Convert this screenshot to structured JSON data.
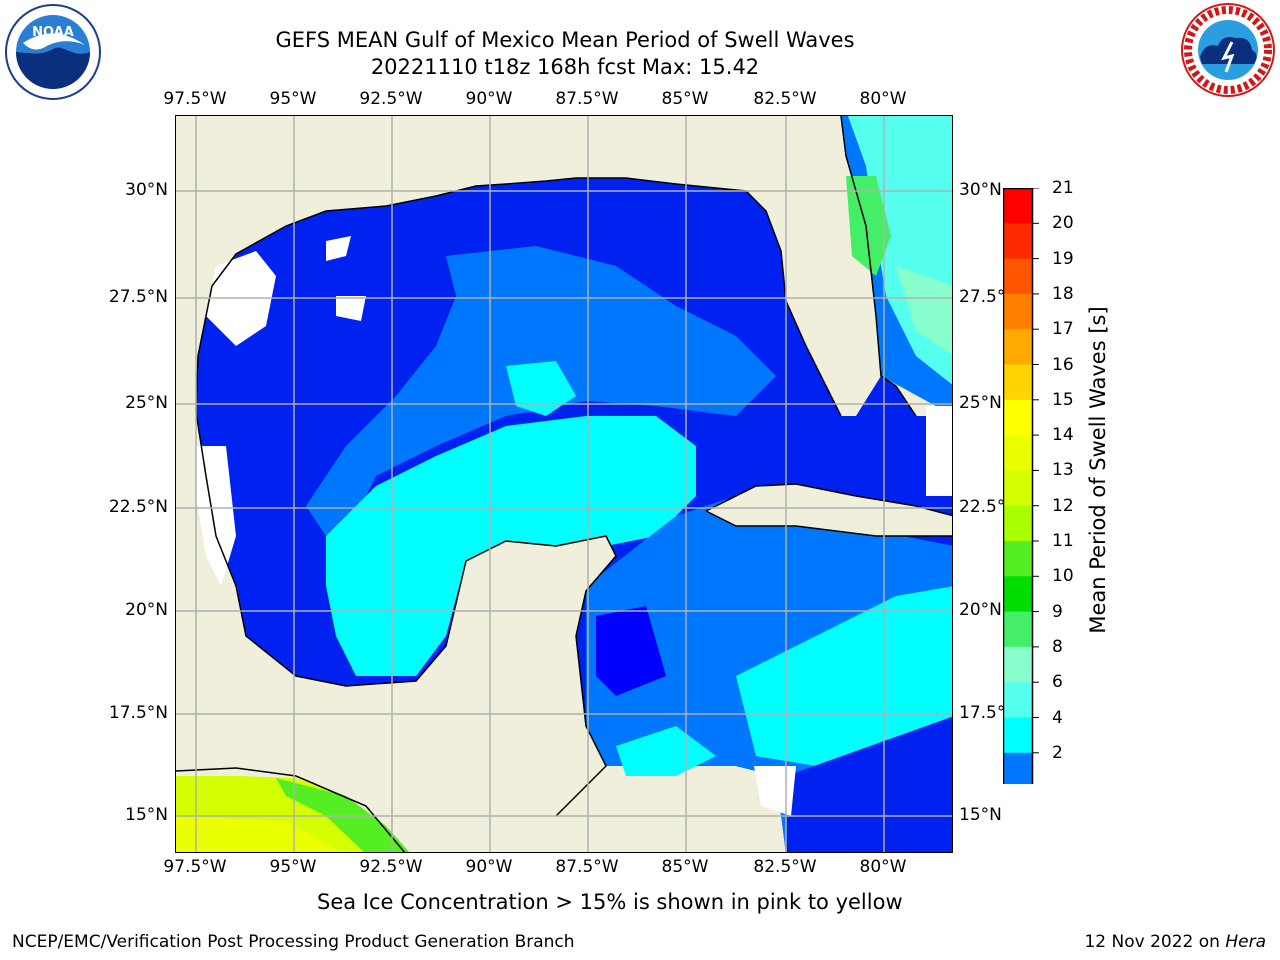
{
  "title_line1": "GEFS MEAN Gulf of Mexico Mean Period of Swell Waves",
  "title_line2": "20221110 t18z 168h fcst   Max: 15.42",
  "longitude_labels": [
    "97.5°W",
    "95°W",
    "92.5°W",
    "90°W",
    "87.5°W",
    "85°W",
    "82.5°W",
    "80°W"
  ],
  "latitude_labels": [
    "30°N",
    "27.5°N",
    "25°N",
    "22.5°N",
    "20°N",
    "17.5°N",
    "15°N"
  ],
  "colorbar": {
    "title": "Mean Period of Swell Waves [s]",
    "ticks": [
      "21",
      "20",
      "19",
      "18",
      "17",
      "16",
      "15",
      "14",
      "13",
      "12",
      "11",
      "10",
      "9",
      "8",
      "6",
      "4",
      "2"
    ],
    "colors": [
      "#ff0000",
      "#ff2a00",
      "#ff5500",
      "#ff8000",
      "#ffaa00",
      "#ffd400",
      "#ffff00",
      "#eaff00",
      "#d4ff00",
      "#aaff00",
      "#55ee22",
      "#00dd00",
      "#44ee66",
      "#88ffcc",
      "#55ffee",
      "#00ffff",
      "#0077ff",
      "#0000ff"
    ]
  },
  "subnote": "Sea Ice Concentration > 15% is shown in pink to yellow",
  "credit": "NCEP/EMC/Verification Post Processing Product Generation Branch",
  "date_text": "12 Nov 2022 on ",
  "host": "Hera",
  "logos": {
    "left": "noaa-logo",
    "right": "nws-logo"
  }
}
